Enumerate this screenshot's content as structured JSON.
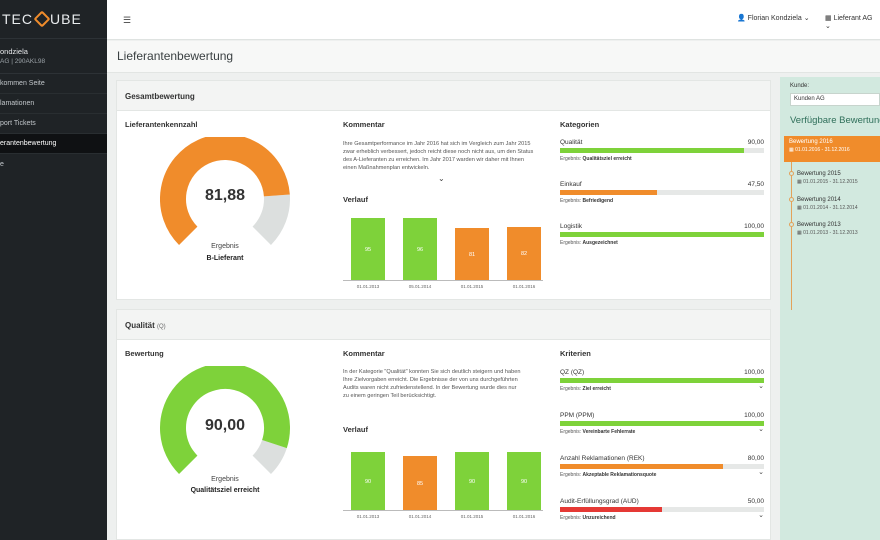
{
  "sidebar": {
    "logo_left": "TEC",
    "logo_right": "UBE",
    "user_name": "ondziela",
    "user_sub": "AG | 290AKL98",
    "items": [
      {
        "label": "kommen Seite"
      },
      {
        "label": "lamationen"
      },
      {
        "label": "port Tickets"
      },
      {
        "label": "erantenbewertung"
      },
      {
        "label": "e"
      }
    ]
  },
  "topbar": {
    "user": "Florian Kondziela ⌄",
    "supplier": "Lieferant AG ⌄"
  },
  "page": {
    "title": "Lieferantenbewertung"
  },
  "overall": {
    "heading": "Gesamtbewertung",
    "kpi_title": "Lieferantenkennzahl",
    "gauge_value": "81,88",
    "gauge_label": "Ergebnis",
    "gauge_result": "B-Lieferant",
    "gauge_fraction": 0.8188,
    "gauge_color": "#f08c2b",
    "comment_title": "Kommentar",
    "comment": "Ihre Gesamtperformance im Jahr 2016 hat sich im Vergleich zum Jahr 2015 zwar erheblich verbessert, jedoch reicht diese noch nicht aus, um den Status des A-Lieferanten zu erreichen. Im Jahr 2017 warden wir daher mit Ihnen einen Maßnahmenplan entwickeln.",
    "trend_title": "Verlauf",
    "trend": [
      {
        "value": 95,
        "label": "95",
        "date": "01.01.2013",
        "color": "#7ed23a"
      },
      {
        "value": 96,
        "label": "96",
        "date": "05.01.2014",
        "color": "#7ed23a"
      },
      {
        "value": 81,
        "label": "81",
        "date": "01.01.2015",
        "color": "#f08c2b"
      },
      {
        "value": 82,
        "label": "82",
        "date": "01.01.2016",
        "color": "#f08c2b"
      }
    ],
    "cat_title": "Kategorien",
    "categories": [
      {
        "name": "Qualität",
        "value": "90,00",
        "fraction": 0.9,
        "color": "#7ed23a",
        "result_label": "Ergebnis:",
        "result": "Qualitätsziel erreicht"
      },
      {
        "name": "Einkauf",
        "value": "47,50",
        "fraction": 0.475,
        "color": "#f08c2b",
        "result_label": "Ergebnis:",
        "result": "Befriedigend"
      },
      {
        "name": "Logistik",
        "value": "100,00",
        "fraction": 1.0,
        "color": "#7ed23a",
        "result_label": "Ergebnis:",
        "result": "Ausgezeichnet"
      }
    ]
  },
  "quality": {
    "heading": "Qualität",
    "heading_suffix": "(Q)",
    "kpi_title": "Bewertung",
    "gauge_value": "90,00",
    "gauge_label": "Ergebnis",
    "gauge_result": "Qualitätsziel erreicht",
    "gauge_fraction": 0.9,
    "gauge_color": "#7ed23a",
    "comment_title": "Kommentar",
    "comment": "In der Kategorie \"Qualität\" konnten Sie sich deutlich steigern und haben Ihre Zielvorgaben erreicht. Die Ergebnisse der von uns durchgeführten Audits waren nicht zufriedenstellend. In der Bewertung wurde dies nur zu einem geringen Teil berücksichtigt.",
    "trend_title": "Verlauf",
    "trend": [
      {
        "value": 90,
        "label": "90",
        "date": "01.01.2013",
        "color": "#7ed23a"
      },
      {
        "value": 85,
        "label": "85",
        "date": "01.01.2014",
        "color": "#f08c2b"
      },
      {
        "value": 90,
        "label": "90",
        "date": "01.01.2015",
        "color": "#7ed23a"
      },
      {
        "value": 90,
        "label": "90",
        "date": "01.01.2016",
        "color": "#7ed23a"
      }
    ],
    "crit_title": "Kriterien",
    "criteria": [
      {
        "name": "QZ (QZ)",
        "value": "100,00",
        "fraction": 1.0,
        "color": "#7ed23a",
        "result_label": "Ergebnis:",
        "result": "Ziel erreicht"
      },
      {
        "name": "PPM (PPM)",
        "value": "100,00",
        "fraction": 1.0,
        "color": "#7ed23a",
        "result_label": "Ergebnis:",
        "result": "Vereinbarte Fehlerrate"
      },
      {
        "name": "Anzahl Reklamationen (REK)",
        "value": "80,00",
        "fraction": 0.8,
        "color": "#f08c2b",
        "result_label": "Ergebnis:",
        "result": "Akzeptable Reklamationsquote"
      },
      {
        "name": "Audit-Erfüllungsgrad (AUD)",
        "value": "50,00",
        "fraction": 0.5,
        "color": "#e53935",
        "result_label": "Ergebnis:",
        "result": "Unzureichend"
      }
    ]
  },
  "right_panel": {
    "customer_label": "Kunde:",
    "customer_value": "Kunden AG",
    "heading": "Verfügbare Bewertung",
    "items": [
      {
        "title": "Bewertung 2016",
        "dates": "01.01.2016 - 31.12.2016"
      },
      {
        "title": "Bewertung 2015",
        "dates": "01.01.2015 - 31.12.2015"
      },
      {
        "title": "Bewertung 2014",
        "dates": "01.01.2014 - 31.12.2014"
      },
      {
        "title": "Bewertung 2013",
        "dates": "01.01.2013 - 31.12.2013"
      }
    ]
  }
}
